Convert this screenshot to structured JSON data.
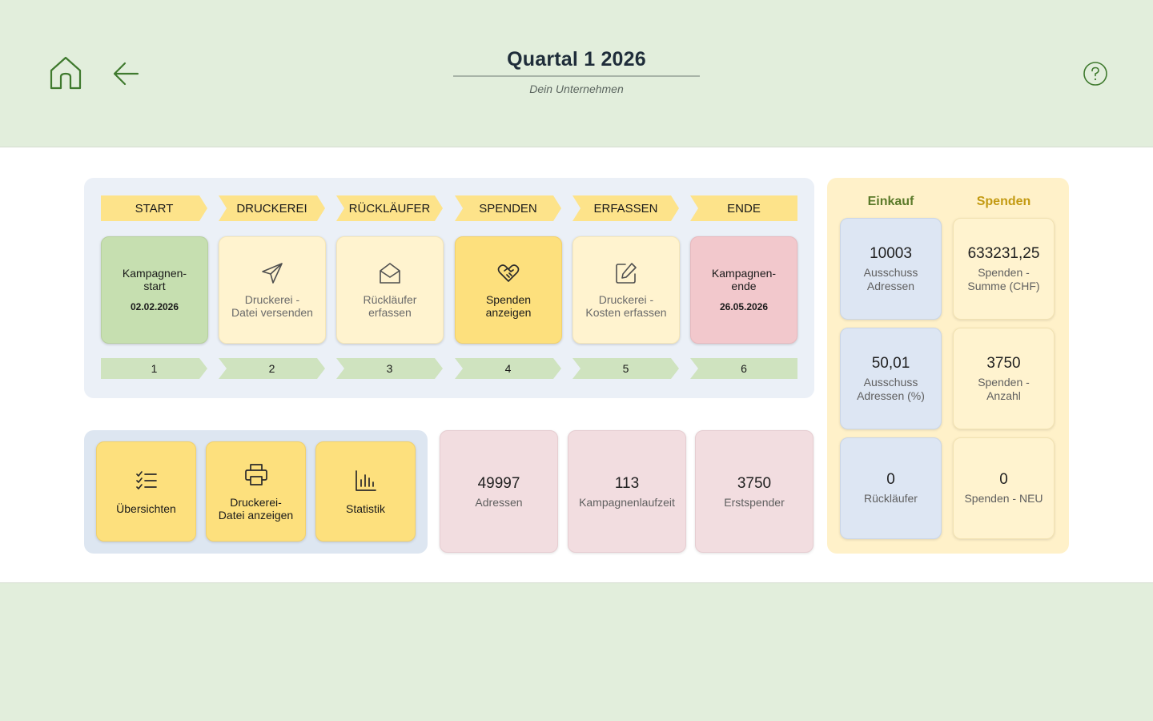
{
  "header": {
    "title": "Quartal 1 2026",
    "subtitle": "Dein Unternehmen",
    "home_icon": "home-icon",
    "back_icon": "arrow-left-icon",
    "help_icon": "help-circle-icon"
  },
  "process": {
    "phases": [
      "START",
      "DRUCKEREI",
      "RÜCKLÄUFER",
      "SPENDEN",
      "ERFASSEN",
      "ENDE"
    ],
    "steps": [
      {
        "line1": "Kampagnen-",
        "line2": "start",
        "date": "02.02.2026",
        "icon": null
      },
      {
        "line1": "Druckerei -",
        "line2": "Datei versenden",
        "icon": "send-icon"
      },
      {
        "line1": "Rückläufer",
        "line2": "erfassen",
        "icon": "mail-open-icon"
      },
      {
        "line1": "Spenden",
        "line2": "anzeigen",
        "icon": "handshake-heart-icon"
      },
      {
        "line1": "Druckerei -",
        "line2": "Kosten erfassen",
        "icon": "edit-icon"
      },
      {
        "line1": "Kampagnen-",
        "line2": "ende",
        "date": "26.05.2026",
        "icon": null
      }
    ],
    "numbers": [
      "1",
      "2",
      "3",
      "4",
      "5",
      "6"
    ]
  },
  "actions": [
    {
      "line1": "Übersichten",
      "line2": "",
      "icon": "checklist-icon"
    },
    {
      "line1": "Druckerei-",
      "line2": "Datei anzeigen",
      "icon": "printer-icon"
    },
    {
      "line1": "Statistik",
      "line2": "",
      "icon": "bar-chart-icon"
    }
  ],
  "stats": [
    {
      "value": "49997",
      "label": "Adressen"
    },
    {
      "value": "113",
      "label": "Kampagnenlaufzeit"
    },
    {
      "value": "3750",
      "label": "Erstspender"
    }
  ],
  "summary": {
    "einkauf_header": "Einkauf",
    "spenden_header": "Spenden",
    "einkauf": [
      {
        "value": "10003",
        "line1": "Ausschuss",
        "line2": "Adressen"
      },
      {
        "value": "50,01",
        "line1": "Ausschuss",
        "line2": "Adressen (%)"
      },
      {
        "value": "0",
        "line1": "Rückläufer",
        "line2": ""
      }
    ],
    "spenden": [
      {
        "value": "633231,25",
        "line1": "Spenden -",
        "line2": "Summe (CHF)"
      },
      {
        "value": "3750",
        "line1": "Spenden -",
        "line2": "Anzahl"
      },
      {
        "value": "0",
        "line1": "Spenden - NEU",
        "line2": ""
      }
    ]
  },
  "colors": {
    "background": "#e2eedc",
    "phase_chevron": "#fde38a",
    "number_chevron": "#cfe3bf",
    "start_card": "#c6dfb0",
    "end_card": "#f2c8cc",
    "active_card": "#fde07d",
    "einkauf_header": "#5b7a2a",
    "spenden_header": "#c39a12"
  }
}
